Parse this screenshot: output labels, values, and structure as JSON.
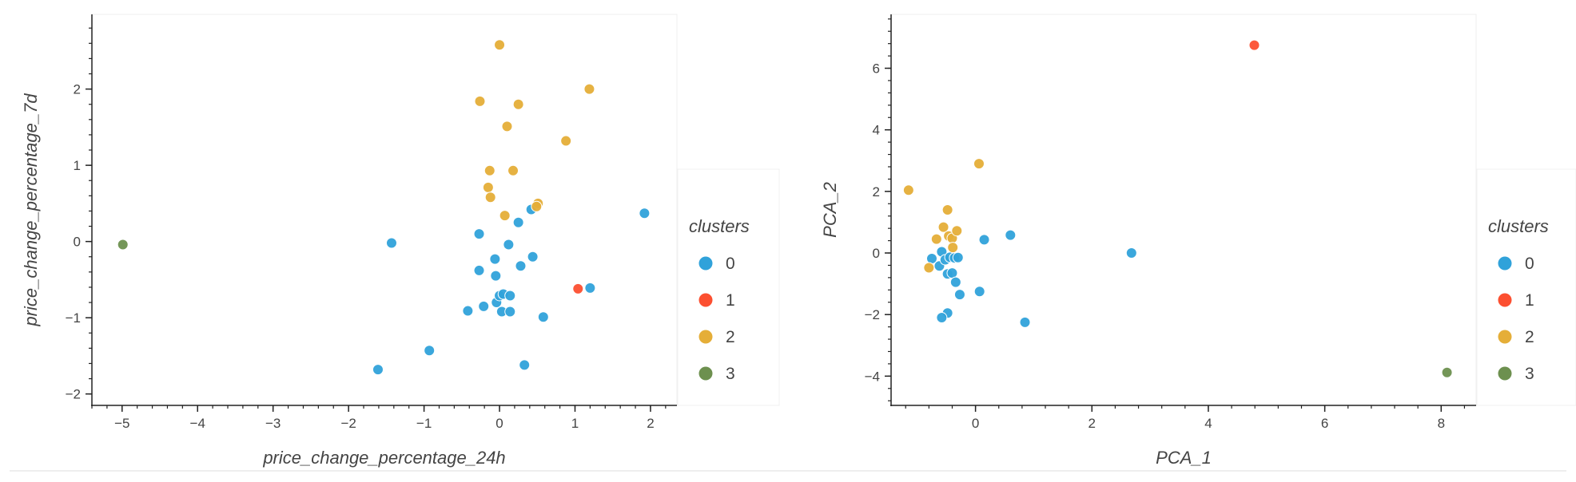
{
  "chart_data": [
    {
      "type": "scatter",
      "xlabel": "price_change_percentage_24h",
      "ylabel": "price_change_percentage_7d",
      "xlim": [
        -5.4,
        2.35
      ],
      "ylim": [
        -2.15,
        2.98
      ],
      "xticks": [
        -5,
        -4,
        -3,
        -2,
        -1,
        0,
        1,
        2
      ],
      "yticks": [
        -2,
        -1,
        0,
        1,
        2
      ],
      "grid": false,
      "legend": {
        "title": "clusters",
        "position": "right",
        "entries": [
          "0",
          "1",
          "2",
          "3"
        ]
      },
      "series": [
        {
          "name": "0",
          "color": "#30a2da",
          "points": [
            [
              -1.43,
              -0.02
            ],
            [
              -1.61,
              -1.68
            ],
            [
              -0.93,
              -1.43
            ],
            [
              -0.27,
              0.1
            ],
            [
              -0.27,
              -0.38
            ],
            [
              -0.42,
              -0.91
            ],
            [
              -0.21,
              -0.85
            ],
            [
              -0.06,
              -0.23
            ],
            [
              -0.05,
              -0.45
            ],
            [
              -0.04,
              -0.8
            ],
            [
              0.0,
              -0.71
            ],
            [
              0.05,
              -0.69
            ],
            [
              0.14,
              -0.71
            ],
            [
              0.03,
              -0.92
            ],
            [
              0.14,
              -0.92
            ],
            [
              0.12,
              -0.04
            ],
            [
              0.25,
              0.25
            ],
            [
              0.28,
              -0.32
            ],
            [
              0.42,
              0.42
            ],
            [
              0.44,
              -0.2
            ],
            [
              0.58,
              -0.99
            ],
            [
              0.33,
              -1.62
            ],
            [
              1.2,
              -0.61
            ],
            [
              1.92,
              0.37
            ]
          ]
        },
        {
          "name": "1",
          "color": "#fc4f30",
          "points": [
            [
              1.04,
              -0.62
            ]
          ]
        },
        {
          "name": "2",
          "color": "#e5ae38",
          "points": [
            [
              0.0,
              2.58
            ],
            [
              -0.26,
              1.84
            ],
            [
              0.25,
              1.8
            ],
            [
              1.19,
              2.0
            ],
            [
              0.1,
              1.51
            ],
            [
              0.88,
              1.32
            ],
            [
              -0.13,
              0.93
            ],
            [
              0.18,
              0.93
            ],
            [
              -0.15,
              0.71
            ],
            [
              -0.12,
              0.58
            ],
            [
              0.07,
              0.34
            ],
            [
              0.51,
              0.5
            ],
            [
              0.49,
              0.46
            ]
          ]
        },
        {
          "name": "3",
          "color": "#6d904f",
          "points": [
            [
              -4.99,
              -0.04
            ]
          ]
        }
      ]
    },
    {
      "type": "scatter",
      "xlabel": "PCA_1",
      "ylabel": "PCA_2",
      "xlim": [
        -1.45,
        8.6
      ],
      "ylim": [
        -4.95,
        7.75
      ],
      "xticks": [
        0,
        2,
        4,
        6,
        8
      ],
      "yticks": [
        -4,
        -2,
        0,
        2,
        4,
        6
      ],
      "grid": false,
      "legend": {
        "title": "clusters",
        "position": "right",
        "entries": [
          "0",
          "1",
          "2",
          "3"
        ]
      },
      "series": [
        {
          "name": "0",
          "color": "#30a2da",
          "points": [
            [
              -0.75,
              -0.18
            ],
            [
              -0.62,
              -0.42
            ],
            [
              -0.58,
              0.04
            ],
            [
              -0.52,
              -0.22
            ],
            [
              -0.44,
              -0.14
            ],
            [
              -0.36,
              -0.16
            ],
            [
              -0.3,
              -0.15
            ],
            [
              -0.48,
              -0.68
            ],
            [
              -0.4,
              -0.65
            ],
            [
              -0.34,
              -0.95
            ],
            [
              -0.27,
              -1.35
            ],
            [
              -0.48,
              -1.95
            ],
            [
              -0.58,
              -2.1
            ],
            [
              0.07,
              -1.25
            ],
            [
              0.15,
              0.43
            ],
            [
              0.6,
              0.58
            ],
            [
              0.85,
              -2.25
            ],
            [
              2.68,
              0.0
            ]
          ]
        },
        {
          "name": "1",
          "color": "#fc4f30",
          "points": [
            [
              4.79,
              6.75
            ]
          ]
        },
        {
          "name": "2",
          "color": "#e5ae38",
          "points": [
            [
              -1.15,
              2.04
            ],
            [
              -0.48,
              1.4
            ],
            [
              -0.55,
              0.84
            ],
            [
              -0.67,
              0.45
            ],
            [
              -0.46,
              0.55
            ],
            [
              -0.4,
              0.48
            ],
            [
              -0.32,
              0.72
            ],
            [
              -0.39,
              0.18
            ],
            [
              -0.8,
              -0.48
            ],
            [
              0.06,
              2.9
            ]
          ]
        },
        {
          "name": "3",
          "color": "#6d904f",
          "points": [
            [
              8.1,
              -3.88
            ]
          ]
        }
      ]
    }
  ]
}
